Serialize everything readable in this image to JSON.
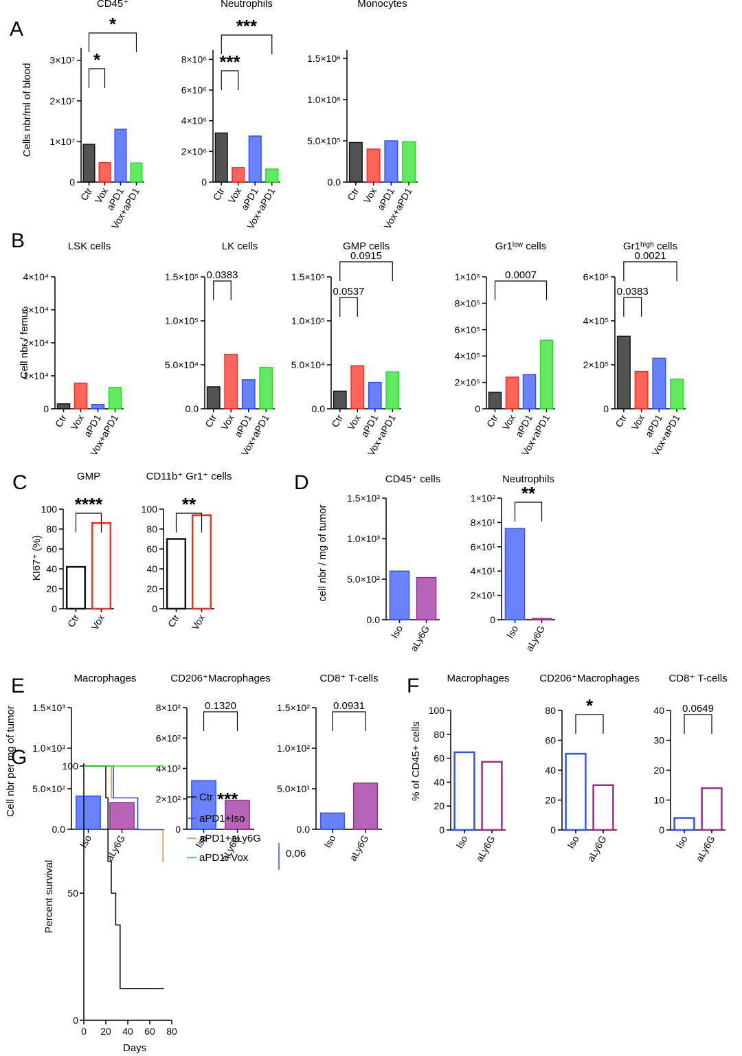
{
  "colors": {
    "Ctr": "#111111",
    "Vox": "#ff2a1a",
    "aPD1": "#2f52ff",
    "VoxaPD1": "#24e024",
    "Iso": "#2f52ff",
    "aLy6G": "#9a2a9a",
    "orange": "#f0932a"
  },
  "panel_letters": [
    "A",
    "B",
    "C",
    "D",
    "E",
    "F",
    "G"
  ],
  "ylabels": {
    "A": "Cells nbr/ml of blood",
    "B": "Cell nbr / femur",
    "C": "KI67⁺ (%)",
    "D": "cell nbr / mg of tumor",
    "E": "Cell nbr per mg of tumor",
    "F": "% of CD45+ cells",
    "G": "Percent survival"
  },
  "chart_data": [
    {
      "id": "A1",
      "type": "bar",
      "title": "CD45⁺",
      "categories": [
        "Ctr",
        "Vox",
        "aPD1",
        "Vox+aPD1"
      ],
      "values": [
        9300000.0,
        4800000.0,
        13000000.0,
        4700000.0
      ],
      "ylim": [
        0,
        33000000.0
      ],
      "yticks": [
        {
          "v": 0,
          "t": "0"
        },
        {
          "v": 10000000.0,
          "t": "1×10⁷"
        },
        {
          "v": 20000000.0,
          "t": "2×10⁷"
        },
        {
          "v": 30000000.0,
          "t": "3×10⁷"
        }
      ],
      "brackets": [
        {
          "a": 0,
          "b": 1,
          "label": "*"
        },
        {
          "a": 0,
          "b": 3,
          "label": "*"
        }
      ]
    },
    {
      "id": "A2",
      "type": "bar",
      "title": "Neutrophils",
      "categories": [
        "Ctr",
        "Vox",
        "aPD1",
        "Vox+aPD1"
      ],
      "values": [
        3200000.0,
        950000.0,
        3000000.0,
        850000.0
      ],
      "ylim": [
        0,
        8600000.0
      ],
      "yticks": [
        {
          "v": 0,
          "t": "0"
        },
        {
          "v": 2000000.0,
          "t": "2×10⁶"
        },
        {
          "v": 4000000.0,
          "t": "4×10⁶"
        },
        {
          "v": 6000000.0,
          "t": "6×10⁶"
        },
        {
          "v": 8000000.0,
          "t": "8×10⁶"
        }
      ],
      "brackets": [
        {
          "a": 0,
          "b": 1,
          "label": "***"
        },
        {
          "a": 0,
          "b": 3,
          "label": "***"
        }
      ]
    },
    {
      "id": "A3",
      "type": "bar",
      "title": "Monocytes",
      "categories": [
        "Ctr",
        "Vox",
        "aPD1",
        "Vox+aPD1"
      ],
      "values": [
        480000.0,
        400000.0,
        500000.0,
        490000.0
      ],
      "ylim": [
        0,
        1600000.0
      ],
      "yticks": [
        {
          "v": 0,
          "t": "0.0"
        },
        {
          "v": 500000.0,
          "t": "5.0×10⁵"
        },
        {
          "v": 1000000.0,
          "t": "1.0×10⁶"
        },
        {
          "v": 1500000.0,
          "t": "1.5×10⁶"
        }
      ],
      "brackets": []
    },
    {
      "id": "B1",
      "type": "bar",
      "title": "LSK cells",
      "categories": [
        "Ctr",
        "Vox",
        "aPD1",
        "Vox+aPD1"
      ],
      "values": [
        1500,
        7800,
        1300,
        6500
      ],
      "ylim": [
        0,
        40000
      ],
      "yticks": [
        {
          "v": 0,
          "t": "0"
        },
        {
          "v": 10000.0,
          "t": "1×10⁴"
        },
        {
          "v": 20000.0,
          "t": "2×10⁴"
        },
        {
          "v": 30000.0,
          "t": "3×10⁴"
        },
        {
          "v": 40000.0,
          "t": "4×10⁴"
        }
      ],
      "brackets": []
    },
    {
      "id": "B2",
      "type": "bar",
      "title": "LK cells",
      "categories": [
        "Ctr",
        "Vox",
        "aPD1",
        "Vox+aPD1"
      ],
      "values": [
        25000,
        62000,
        33000,
        47000
      ],
      "ylim": [
        0,
        150000
      ],
      "yticks": [
        {
          "v": 0,
          "t": "0.0"
        },
        {
          "v": 50000.0,
          "t": "5.0×10⁴"
        },
        {
          "v": 100000.0,
          "t": "1.0×10⁵"
        },
        {
          "v": 150000.0,
          "t": "1.5×10⁵"
        }
      ],
      "brackets": [
        {
          "a": 0,
          "b": 1,
          "label": "0.0383"
        }
      ]
    },
    {
      "id": "B3",
      "type": "bar",
      "title": "GMP cells",
      "categories": [
        "Ctr",
        "Vox",
        "aPD1",
        "Vox+aPD1"
      ],
      "values": [
        20000,
        49000,
        30000,
        42000
      ],
      "ylim": [
        0,
        150000
      ],
      "yticks": [
        {
          "v": 0,
          "t": "0.0"
        },
        {
          "v": 50000.0,
          "t": "5.0×10⁴"
        },
        {
          "v": 100000.0,
          "t": "1.0×10⁵"
        },
        {
          "v": 150000.0,
          "t": "1.5×10⁵"
        }
      ],
      "brackets": [
        {
          "a": 0,
          "b": 1,
          "label": "0.0537"
        },
        {
          "a": 0,
          "b": 3,
          "label": "0.0915"
        }
      ]
    },
    {
      "id": "B4",
      "type": "bar",
      "title": "Gr1ˡᵒʷ cells",
      "categories": [
        "Ctr",
        "Vox",
        "aPD1",
        "Vox+aPD1"
      ],
      "values": [
        125000,
        240000,
        260000,
        520000
      ],
      "ylim": [
        0,
        1000000
      ],
      "yticks": [
        {
          "v": 0,
          "t": "0"
        },
        {
          "v": 200000.0,
          "t": "2×10⁵"
        },
        {
          "v": 400000.0,
          "t": "4×10⁵"
        },
        {
          "v": 600000.0,
          "t": "6×10⁵"
        },
        {
          "v": 800000.0,
          "t": "8×10⁵"
        },
        {
          "v": 1000000.0,
          "t": "1×10⁶"
        }
      ],
      "brackets": [
        {
          "a": 0,
          "b": 3,
          "label": "0.0007"
        }
      ]
    },
    {
      "id": "B5",
      "type": "bar",
      "title": "Gr1ʰⁱᵍʰ cells",
      "categories": [
        "Ctr",
        "Vox",
        "aPD1",
        "Vox+aPD1"
      ],
      "values": [
        330000,
        170000,
        230000,
        135000
      ],
      "ylim": [
        0,
        600000
      ],
      "yticks": [
        {
          "v": 0,
          "t": "0"
        },
        {
          "v": 200000.0,
          "t": "2×10⁵"
        },
        {
          "v": 400000.0,
          "t": "4×10⁵"
        },
        {
          "v": 600000.0,
          "t": "6×10⁵"
        }
      ],
      "brackets": [
        {
          "a": 0,
          "b": 1,
          "label": "0.0383"
        },
        {
          "a": 0,
          "b": 3,
          "label": "0.0021"
        }
      ]
    },
    {
      "id": "C1",
      "type": "bar",
      "title": "GMP",
      "categories": [
        "Ctr",
        "Vox"
      ],
      "values": [
        42,
        86
      ],
      "ylim": [
        0,
        100
      ],
      "yticks": [
        {
          "v": 0,
          "t": "0"
        },
        {
          "v": 20,
          "t": "20"
        },
        {
          "v": 40,
          "t": "40"
        },
        {
          "v": 60,
          "t": "60"
        },
        {
          "v": 80,
          "t": "80"
        },
        {
          "v": 100,
          "t": "100"
        }
      ],
      "brackets": [
        {
          "a": 0,
          "b": 1,
          "label": "****"
        }
      ]
    },
    {
      "id": "C2",
      "type": "bar",
      "title": "CD11b⁺ Gr1⁺ cells",
      "categories": [
        "Ctr",
        "Vox"
      ],
      "values": [
        70,
        94
      ],
      "ylim": [
        0,
        100
      ],
      "yticks": [
        {
          "v": 0,
          "t": "0"
        },
        {
          "v": 20,
          "t": "20"
        },
        {
          "v": 40,
          "t": "40"
        },
        {
          "v": 60,
          "t": "60"
        },
        {
          "v": 80,
          "t": "80"
        },
        {
          "v": 100,
          "t": "100"
        }
      ],
      "brackets": [
        {
          "a": 0,
          "b": 1,
          "label": "**"
        }
      ]
    },
    {
      "id": "D1",
      "type": "bar",
      "title": "CD45⁺ cells",
      "categories": [
        "Iso",
        "aLy6G"
      ],
      "values": [
        600,
        520
      ],
      "ylim": [
        0,
        1500
      ],
      "yticks": [
        {
          "v": 0,
          "t": "0.0"
        },
        {
          "v": 500,
          "t": "5.0×10²"
        },
        {
          "v": 1000,
          "t": "1.0×10³"
        },
        {
          "v": 1500,
          "t": "1.5×10³"
        }
      ],
      "brackets": []
    },
    {
      "id": "D2",
      "type": "bar",
      "title": "Neutrophils",
      "categories": [
        "Iso",
        "aLy6G"
      ],
      "values": [
        75,
        1
      ],
      "ylim": [
        0,
        100
      ],
      "yticks": [
        {
          "v": 0,
          "t": "0"
        },
        {
          "v": 20,
          "t": "2×10¹"
        },
        {
          "v": 40,
          "t": "4×10¹"
        },
        {
          "v": 60,
          "t": "6×10¹"
        },
        {
          "v": 80,
          "t": "8×10¹"
        },
        {
          "v": 100,
          "t": "1×10²"
        }
      ],
      "brackets": [
        {
          "a": 0,
          "b": 1,
          "label": "**"
        }
      ]
    },
    {
      "id": "E1",
      "type": "bar",
      "title": "Macrophages",
      "categories": [
        "Iso",
        "aLy6G"
      ],
      "values": [
        410,
        330
      ],
      "ylim": [
        0,
        1500
      ],
      "yticks": [
        {
          "v": 0,
          "t": "0.0"
        },
        {
          "v": 500,
          "t": "5.0×10²"
        },
        {
          "v": 1000,
          "t": "1.0×10³"
        },
        {
          "v": 1500,
          "t": "1.5×10³"
        }
      ],
      "brackets": []
    },
    {
      "id": "E2",
      "type": "bar",
      "title": "CD206⁺Macrophages",
      "categories": [
        "Iso",
        "aLy6G"
      ],
      "values": [
        320,
        190
      ],
      "ylim": [
        0,
        800
      ],
      "yticks": [
        {
          "v": 0,
          "t": "0"
        },
        {
          "v": 200,
          "t": "2×10²"
        },
        {
          "v": 400,
          "t": "4×10²"
        },
        {
          "v": 600,
          "t": "6×10²"
        },
        {
          "v": 800,
          "t": "8×10²"
        }
      ],
      "brackets": [
        {
          "a": 0,
          "b": 1,
          "label": "0.1320"
        }
      ]
    },
    {
      "id": "E3",
      "type": "bar",
      "title": "CD8⁺ T-cells",
      "categories": [
        "Iso",
        "aLy6G"
      ],
      "values": [
        20,
        57
      ],
      "ylim": [
        0,
        150
      ],
      "yticks": [
        {
          "v": 0,
          "t": "0.0"
        },
        {
          "v": 50,
          "t": "5.0×10¹"
        },
        {
          "v": 100,
          "t": "1.0×10²"
        },
        {
          "v": 150,
          "t": "1.5×10²"
        }
      ],
      "brackets": [
        {
          "a": 0,
          "b": 1,
          "label": "0.0931"
        }
      ]
    },
    {
      "id": "F1",
      "type": "bar",
      "title": "Macrophages",
      "categories": [
        "Iso",
        "aLy6G"
      ],
      "values": [
        65,
        57
      ],
      "ylim": [
        0,
        100
      ],
      "yticks": [
        {
          "v": 0,
          "t": "0"
        },
        {
          "v": 20,
          "t": "20"
        },
        {
          "v": 40,
          "t": "40"
        },
        {
          "v": 60,
          "t": "60"
        },
        {
          "v": 80,
          "t": "80"
        },
        {
          "v": 100,
          "t": "100"
        }
      ],
      "brackets": []
    },
    {
      "id": "F2",
      "type": "bar",
      "title": "CD206⁺Macrophages",
      "categories": [
        "Iso",
        "aLy6G"
      ],
      "values": [
        51,
        30
      ],
      "ylim": [
        0,
        80
      ],
      "yticks": [
        {
          "v": 0,
          "t": "0"
        },
        {
          "v": 20,
          "t": "20"
        },
        {
          "v": 40,
          "t": "40"
        },
        {
          "v": 60,
          "t": "60"
        },
        {
          "v": 80,
          "t": "80"
        }
      ],
      "brackets": [
        {
          "a": 0,
          "b": 1,
          "label": "*"
        }
      ]
    },
    {
      "id": "F3",
      "type": "bar",
      "title": "CD8⁺ T-cells",
      "categories": [
        "Iso",
        "aLy6G"
      ],
      "values": [
        4,
        14
      ],
      "ylim": [
        0,
        40
      ],
      "yticks": [
        {
          "v": 0,
          "t": "0"
        },
        {
          "v": 10,
          "t": "10"
        },
        {
          "v": 20,
          "t": "20"
        },
        {
          "v": 30,
          "t": "30"
        },
        {
          "v": 40,
          "t": "40"
        }
      ],
      "brackets": [
        {
          "a": 0,
          "b": 1,
          "label": "0.0649"
        }
      ]
    },
    {
      "id": "G",
      "type": "line",
      "title": "",
      "xlabel": "Days",
      "ylabel": "Percent survival",
      "xlim": [
        0,
        80
      ],
      "ylim": [
        0,
        100
      ],
      "xticks": [
        0,
        20,
        40,
        60,
        80
      ],
      "yticks": [
        0,
        50,
        100
      ],
      "series": [
        {
          "name": "Ctr",
          "points": [
            [
              0,
              100
            ],
            [
              20,
              100
            ],
            [
              20,
              87.5
            ],
            [
              22,
              87.5
            ],
            [
              22,
              62.5
            ],
            [
              25,
              62.5
            ],
            [
              25,
              50
            ],
            [
              29,
              50
            ],
            [
              29,
              37.5
            ],
            [
              33,
              37.5
            ],
            [
              33,
              12.5
            ],
            [
              73,
              12.5
            ]
          ]
        },
        {
          "name": "aPD1+Iso",
          "points": [
            [
              0,
              100
            ],
            [
              27,
              100
            ],
            [
              27,
              87.5
            ],
            [
              49,
              87.5
            ],
            [
              49,
              75
            ],
            [
              73,
              75
            ]
          ]
        },
        {
          "name": "aPD1+aLy6G",
          "points": [
            [
              0,
              100
            ],
            [
              25,
              100
            ],
            [
              25,
              87.5
            ],
            [
              27,
              87.5
            ],
            [
              27,
              87.5
            ],
            [
              49,
              87.5
            ],
            [
              49,
              75
            ],
            [
              72,
              75
            ],
            [
              72,
              62.5
            ],
            [
              73,
              62.5
            ]
          ]
        },
        {
          "name": "aPD1+Vox",
          "points": [
            [
              0,
              100
            ],
            [
              73,
              100
            ]
          ]
        }
      ],
      "annotations": {
        "stars": "***",
        "pvalue": "0,06"
      }
    }
  ]
}
